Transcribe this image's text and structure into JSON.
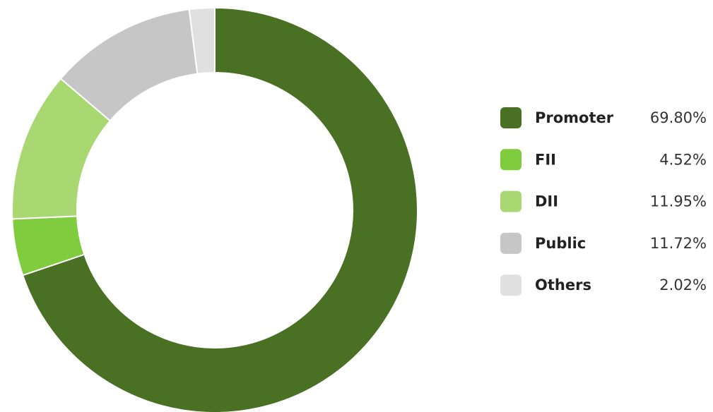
{
  "chart_data": {
    "type": "donut",
    "categories": [
      "Promoter",
      "FII",
      "DII",
      "Public",
      "Others"
    ],
    "values": [
      69.8,
      4.52,
      11.95,
      11.72,
      2.02
    ],
    "value_labels": [
      "69.80%",
      "4.52%",
      "11.95%",
      "11.72%",
      "2.02%"
    ],
    "colors": [
      "#4a7023",
      "#80cc3f",
      "#a9d872",
      "#c6c6c6",
      "#e0e0e0"
    ],
    "legend": "right"
  }
}
